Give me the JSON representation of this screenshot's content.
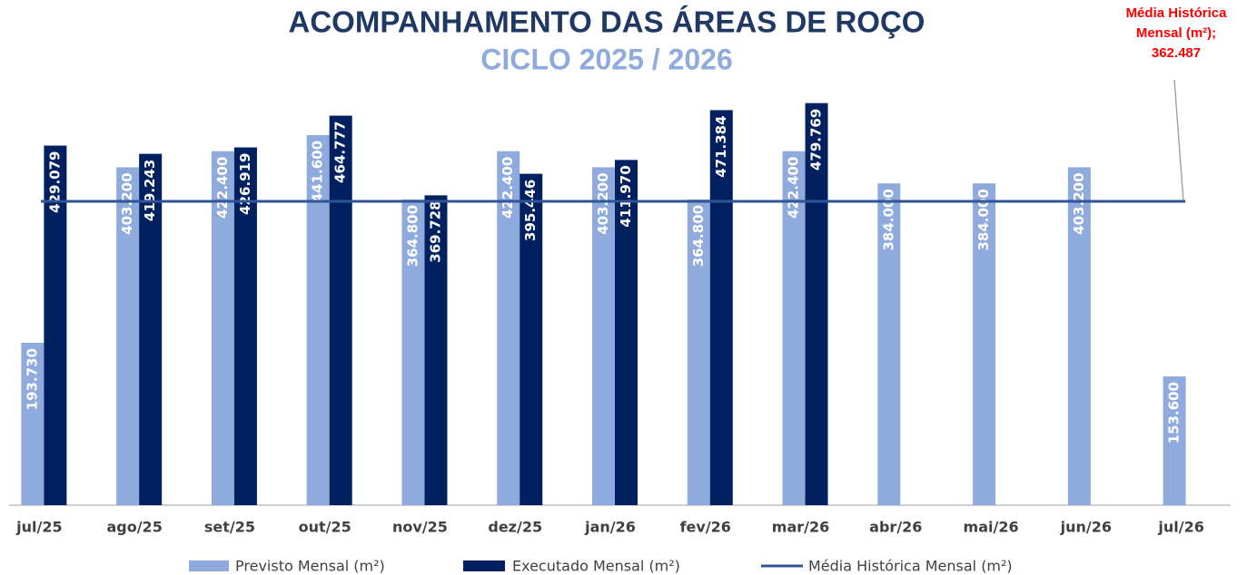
{
  "chart_data": {
    "type": "bar",
    "title": "ACOMPANHAMENTO DAS ÁREAS DE ROÇO",
    "subtitle": "CICLO 2025 / 2026",
    "categories": [
      "jul/25",
      "ago/25",
      "set/25",
      "out/25",
      "nov/25",
      "dez/25",
      "jan/26",
      "fev/26",
      "mar/26",
      "abr/26",
      "mai/26",
      "jun/26",
      "jul/26"
    ],
    "series": [
      {
        "name": "Previsto Mensal (m²)",
        "color": "#8faadc",
        "values": [
          193730,
          403200,
          422400,
          441600,
          364800,
          422400,
          403200,
          364800,
          422400,
          384000,
          384000,
          403200,
          153600
        ],
        "value_labels": [
          "193.730",
          "403.200",
          "422.400",
          "441.600",
          "364.800",
          "422.400",
          "403.200",
          "364.800",
          "422.400",
          "384.000",
          "384.000",
          "403.200",
          "153.600"
        ]
      },
      {
        "name": "Executado Mensal (m²)",
        "color": "#002060",
        "values": [
          429079,
          419243,
          426919,
          464777,
          369728,
          395446,
          411970,
          471384,
          479769,
          null,
          null,
          null,
          null
        ],
        "value_labels": [
          "429.079",
          "419.243",
          "426.919",
          "464.777",
          "369.728",
          "395.446",
          "411.970",
          "471.384",
          "479.769",
          null,
          null,
          null,
          null
        ]
      }
    ],
    "reference_line": {
      "name": "Média Histórica Mensal (m²)",
      "color": "#2f5597",
      "value": 362487,
      "value_label": "362.487",
      "annotation": [
        "Média Histórica",
        "Mensal (m²);"
      ],
      "annotation_color": "#ff0000"
    },
    "ylim": [
      0,
      500000
    ],
    "grid": false
  }
}
